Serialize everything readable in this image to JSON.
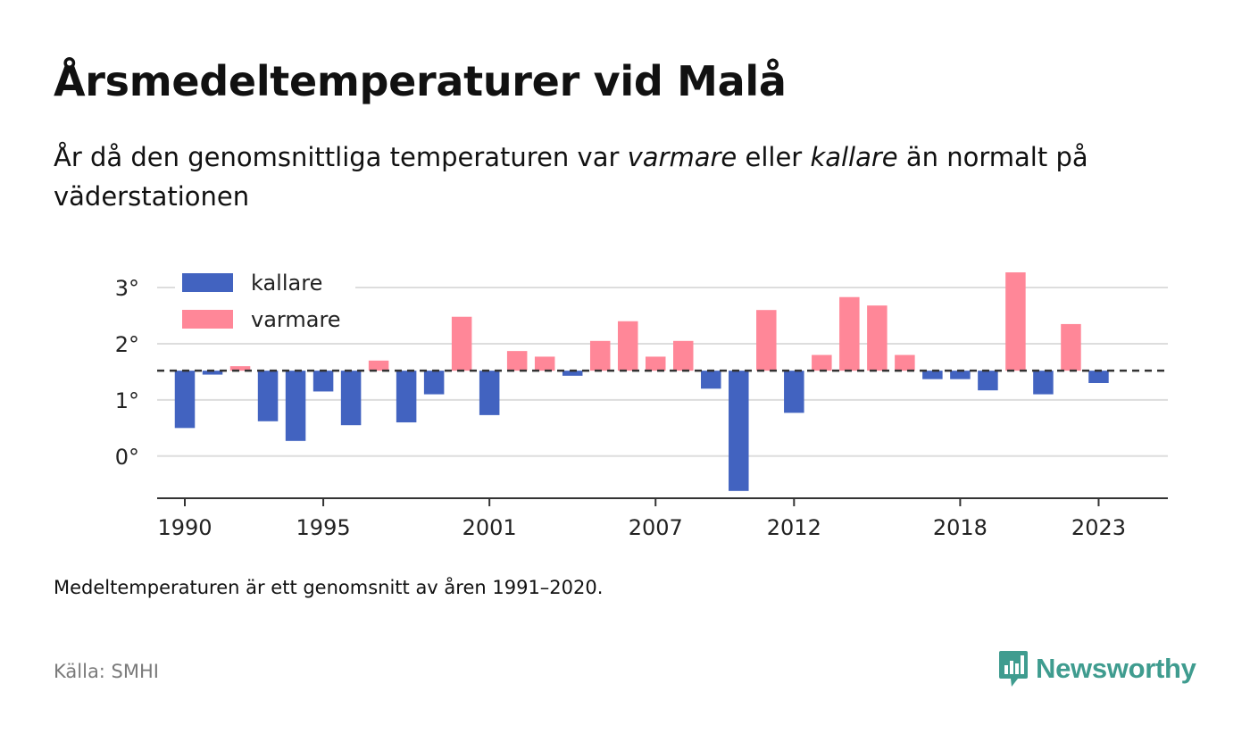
{
  "header": {
    "title": "Årsmedeltemperaturer vid Malå",
    "subtitle_part1": "År då den genomsnittliga temperaturen var ",
    "subtitle_warm": "varmare",
    "subtitle_part2": " eller ",
    "subtitle_cold": "kallare",
    "subtitle_part3": " än normalt på väderstationen"
  },
  "footer": {
    "note": "Medeltemperaturen är ett genomsnitt av åren 1991–2020.",
    "source": "Källa: SMHI",
    "brand": "Newsworthy"
  },
  "colors": {
    "cold": "#4263c0",
    "warm": "#ff8798",
    "brand": "#3f9c8f",
    "grid": "#dddddd",
    "axis": "#333333",
    "reference": "#333333"
  },
  "chart_data": {
    "type": "bar",
    "baseline": 1.52,
    "ylim": [
      -0.75,
      3.35
    ],
    "xlim": [
      1989,
      2025.5
    ],
    "yticks": [
      0,
      1,
      2,
      3
    ],
    "ytick_labels": [
      "0°",
      "1°",
      "2°",
      "3°"
    ],
    "xticks": [
      1990,
      1995,
      2001,
      2007,
      2012,
      2018,
      2023
    ],
    "xtick_labels": [
      "1990",
      "1995",
      "2001",
      "2007",
      "2012",
      "2018",
      "2023"
    ],
    "grid": true,
    "legend": {
      "placement": "top-left",
      "entries": [
        {
          "key": "cold",
          "label": "kallare"
        },
        {
          "key": "warm",
          "label": "varmare"
        }
      ]
    },
    "years": [
      1990,
      1991,
      1992,
      1993,
      1994,
      1995,
      1996,
      1997,
      1998,
      1999,
      2000,
      2001,
      2002,
      2003,
      2004,
      2005,
      2006,
      2007,
      2008,
      2009,
      2010,
      2011,
      2012,
      2013,
      2014,
      2015,
      2016,
      2017,
      2018,
      2019,
      2020,
      2021,
      2022,
      2023
    ],
    "values": [
      0.5,
      1.45,
      1.6,
      0.62,
      0.27,
      1.15,
      0.55,
      1.7,
      0.6,
      1.1,
      2.48,
      0.73,
      1.87,
      1.77,
      1.43,
      2.05,
      2.4,
      1.77,
      2.05,
      1.2,
      -0.62,
      2.6,
      0.77,
      1.8,
      2.83,
      2.68,
      1.8,
      1.37,
      1.37,
      1.17,
      3.27,
      1.1,
      2.35,
      1.3
    ]
  }
}
